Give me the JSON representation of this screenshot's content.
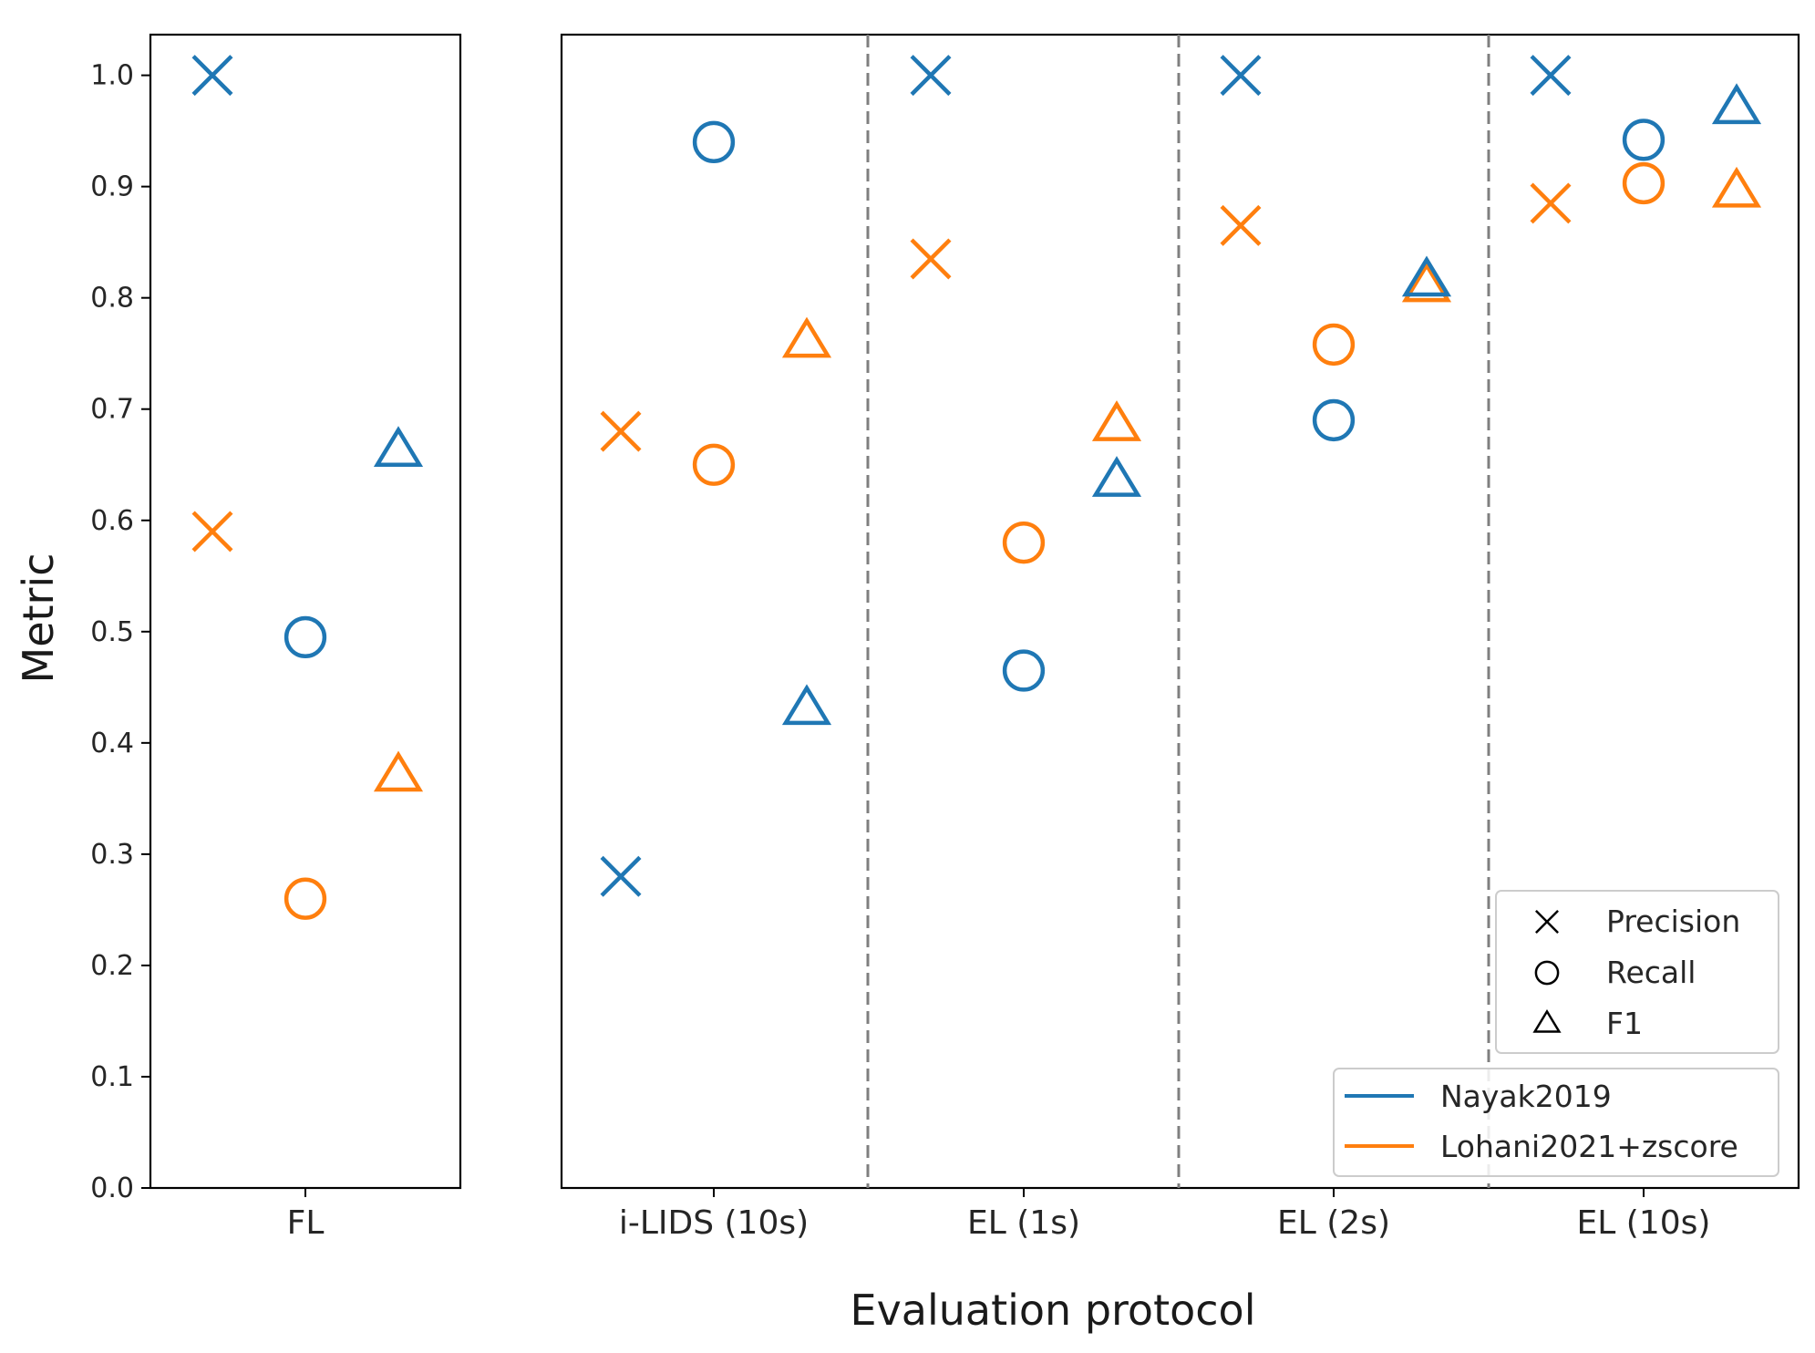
{
  "chart_data": {
    "type": "scatter",
    "ylabel": "Metric",
    "xlabel": "Evaluation protocol",
    "ylim": [
      0.0,
      1.04
    ],
    "yticks": [
      "0.0",
      "0.1",
      "0.2",
      "0.3",
      "0.4",
      "0.5",
      "0.6",
      "0.7",
      "0.8",
      "0.9",
      "1.0"
    ],
    "colors": {
      "Nayak2019": "#1f77b4",
      "Lohani2021+zscore": "#ff7f0e"
    },
    "metrics": [
      "Precision",
      "Recall",
      "F1"
    ],
    "marker_symbols": {
      "Precision": "x",
      "Recall": "circle",
      "F1": "triangle"
    },
    "panels": [
      {
        "name": "left",
        "groups": [
          {
            "label": "FL",
            "Nayak2019": {
              "Precision": 1.0,
              "Recall": 0.495,
              "F1": 0.662
            },
            "Lohani2021+zscore": {
              "Precision": 0.59,
              "Recall": 0.26,
              "F1": 0.37
            }
          }
        ]
      },
      {
        "name": "right",
        "groups": [
          {
            "label": "i-LIDS (10s)",
            "Nayak2019": {
              "Precision": 0.28,
              "Recall": 0.94,
              "F1": 0.43
            },
            "Lohani2021+zscore": {
              "Precision": 0.68,
              "Recall": 0.65,
              "F1": 0.76
            }
          },
          {
            "label": "EL (1s)",
            "Nayak2019": {
              "Precision": 1.0,
              "Recall": 0.465,
              "F1": 0.635
            },
            "Lohani2021+zscore": {
              "Precision": 0.835,
              "Recall": 0.58,
              "F1": 0.685
            }
          },
          {
            "label": "EL (2s)",
            "Nayak2019": {
              "Precision": 1.0,
              "Recall": 0.69,
              "F1": 0.815
            },
            "Lohani2021+zscore": {
              "Precision": 0.865,
              "Recall": 0.758,
              "F1": 0.81
            }
          },
          {
            "label": "EL (10s)",
            "Nayak2019": {
              "Precision": 1.0,
              "Recall": 0.942,
              "F1": 0.97
            },
            "Lohani2021+zscore": {
              "Precision": 0.885,
              "Recall": 0.903,
              "F1": 0.895
            }
          }
        ]
      }
    ],
    "legend_markers": {
      "location": "lower-right",
      "entries": [
        {
          "symbol": "x",
          "label": "Precision"
        },
        {
          "symbol": "circle",
          "label": "Recall"
        },
        {
          "symbol": "triangle",
          "label": "F1"
        }
      ]
    },
    "legend_methods": {
      "location": "lower-right",
      "entries": [
        {
          "method": "Nayak2019",
          "label": "Nayak2019"
        },
        {
          "method": "Lohani2021+zscore",
          "label": "Lohani2021+zscore"
        }
      ]
    }
  }
}
